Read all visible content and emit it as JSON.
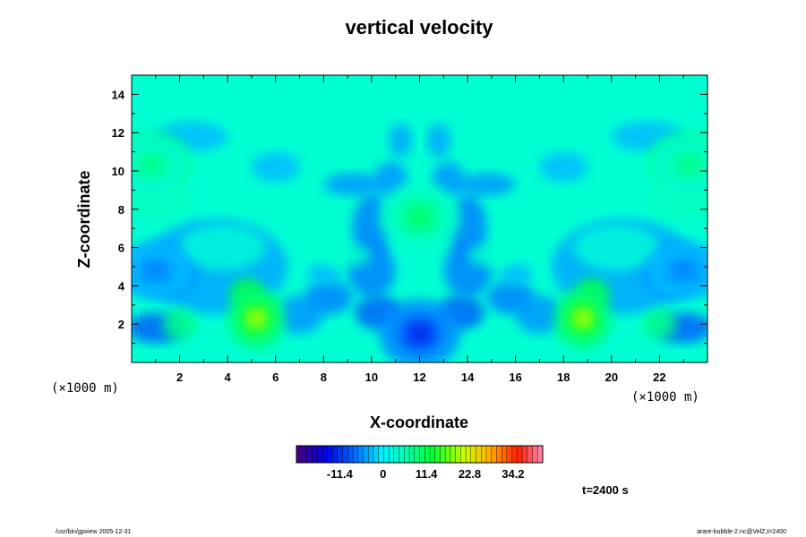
{
  "chart_data": {
    "type": "heatmap",
    "title": "vertical velocity",
    "xlabel": "X-coordinate",
    "ylabel": "Z-coordinate",
    "x_unit_label": "(×1000 m)",
    "z_unit_label": "(×1000 m)",
    "xlim": [
      0,
      24
    ],
    "ylim": [
      0,
      15
    ],
    "x_ticks": [
      "2",
      "4",
      "6",
      "8",
      "10",
      "12",
      "14",
      "16",
      "18",
      "20",
      "22"
    ],
    "y_ticks": [
      "2",
      "4",
      "6",
      "8",
      "10",
      "12",
      "14"
    ],
    "colorbar": {
      "tick_labels": [
        "-11.4",
        "0",
        "11.4",
        "22.8",
        "34.2"
      ],
      "tick_values": [
        -11.4,
        0,
        11.4,
        22.8,
        34.2
      ],
      "range": [
        -22.8,
        42.0
      ]
    },
    "time_label": "t=2400 s",
    "features": [
      {
        "x": 5.2,
        "z": 2.3,
        "value": 20
      },
      {
        "x": 18.8,
        "z": 2.3,
        "value": 20
      },
      {
        "x": 12.0,
        "z": 7.6,
        "value": 10
      },
      {
        "x": 12.0,
        "z": 1.5,
        "value": -12
      },
      {
        "x": 0.8,
        "z": 10.3,
        "value": 8
      },
      {
        "x": 23.2,
        "z": 10.3,
        "value": 8
      },
      {
        "x": 1.0,
        "z": 4.8,
        "value": -6
      },
      {
        "x": 23.0,
        "z": 4.8,
        "value": -6
      }
    ]
  },
  "footer": {
    "left": "/usr/bin/gpview 2005-12-31",
    "right": "arare-bubble-2.nc@VelZ,t=2400"
  },
  "colors": {
    "background": "#00ffd2",
    "frame": "#000000"
  }
}
